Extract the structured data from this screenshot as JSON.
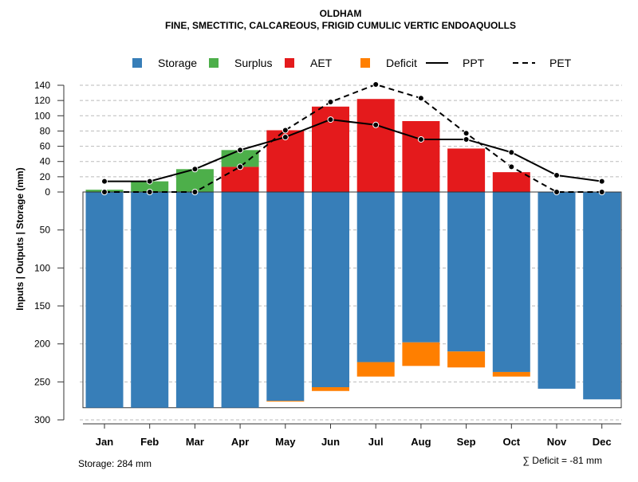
{
  "chart_data": {
    "type": "bar",
    "title": "OLDHAM",
    "subtitle": "FINE, SMECTITIC, CALCAREOUS, FRIGID CUMULIC VERTIC ENDOAQUOLLS",
    "ylabel": "Inputs | Outputs | Storage    (mm)",
    "categories": [
      "Jan",
      "Feb",
      "Mar",
      "Apr",
      "May",
      "Jun",
      "Jul",
      "Aug",
      "Sep",
      "Oct",
      "Nov",
      "Dec"
    ],
    "upper_ticks": [
      0,
      20,
      40,
      60,
      80,
      100,
      120,
      140
    ],
    "lower_ticks": [
      50,
      100,
      150,
      200,
      250,
      300
    ],
    "ylim_upper": [
      0,
      140
    ],
    "ylim_lower": [
      0,
      300
    ],
    "legend": [
      {
        "name": "Storage",
        "kind": "box",
        "color": "#377EB8"
      },
      {
        "name": "Surplus",
        "kind": "box",
        "color": "#4DAF4A"
      },
      {
        "name": "AET",
        "kind": "box",
        "color": "#E41A1C"
      },
      {
        "name": "Deficit",
        "kind": "box",
        "color": "#FF7F00"
      },
      {
        "name": "PPT",
        "kind": "solid"
      },
      {
        "name": "PET",
        "kind": "dashed"
      }
    ],
    "series": [
      {
        "name": "AET",
        "values": [
          0,
          0,
          0,
          33,
          81,
          112,
          122,
          93,
          57,
          26,
          0,
          0
        ]
      },
      {
        "name": "Surplus",
        "values": [
          3,
          14,
          30,
          22,
          0,
          0,
          0,
          0,
          0,
          0,
          0,
          0
        ]
      },
      {
        "name": "Storage",
        "values": [
          284,
          284,
          284,
          284,
          275,
          257,
          224,
          198,
          210,
          237,
          259,
          273
        ]
      },
      {
        "name": "Deficit",
        "values": [
          0,
          0,
          0,
          0,
          1,
          5,
          19,
          31,
          21,
          6,
          0,
          0
        ]
      },
      {
        "name": "PPT",
        "values": [
          14,
          14,
          30,
          55,
          72,
          95,
          88,
          69,
          69,
          52,
          22,
          14
        ]
      },
      {
        "name": "PET",
        "values": [
          0,
          0,
          0,
          33,
          81,
          118,
          141,
          123,
          77,
          33,
          0,
          0
        ]
      }
    ],
    "annotations": {
      "storage": "Storage: 284 mm",
      "deficit": "∑ Deficit = -81 mm"
    }
  }
}
